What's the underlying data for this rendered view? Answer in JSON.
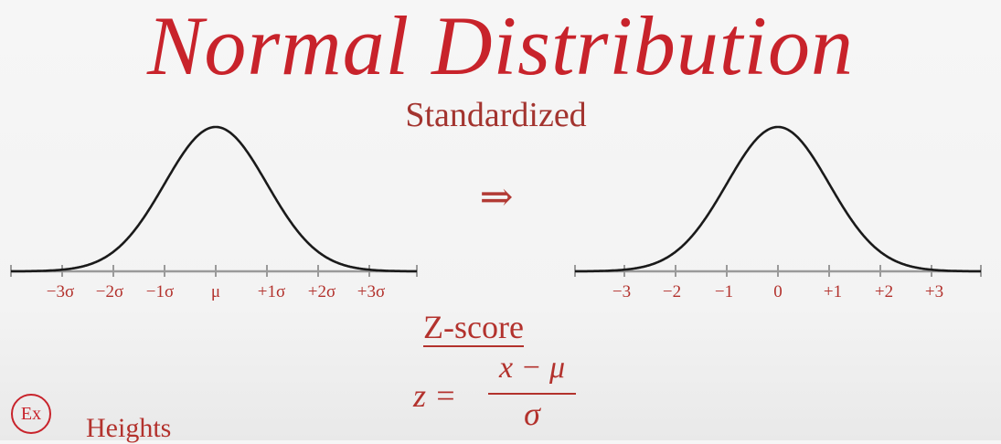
{
  "title": "Normal Distribution",
  "subtitle": "Standardized",
  "arrow": "⇒",
  "left_curve": {
    "tick_labels": [
      "−3σ",
      "−2σ",
      "−1σ",
      "μ",
      "+1σ",
      "+2σ",
      "+3σ"
    ]
  },
  "right_curve": {
    "tick_labels": [
      "−3",
      "−2",
      "−1",
      "0",
      "+1",
      "+2",
      "+3"
    ]
  },
  "zscore": {
    "heading": "Z-score",
    "lhs": "z =",
    "numerator": "x − μ",
    "denominator": "σ"
  },
  "example": {
    "badge": "Ex",
    "label": "Heights"
  },
  "colors": {
    "accent": "#c8232b",
    "text_red": "#b3322d",
    "curve": "#1a1a1a",
    "axis": "#9a9a9a"
  }
}
